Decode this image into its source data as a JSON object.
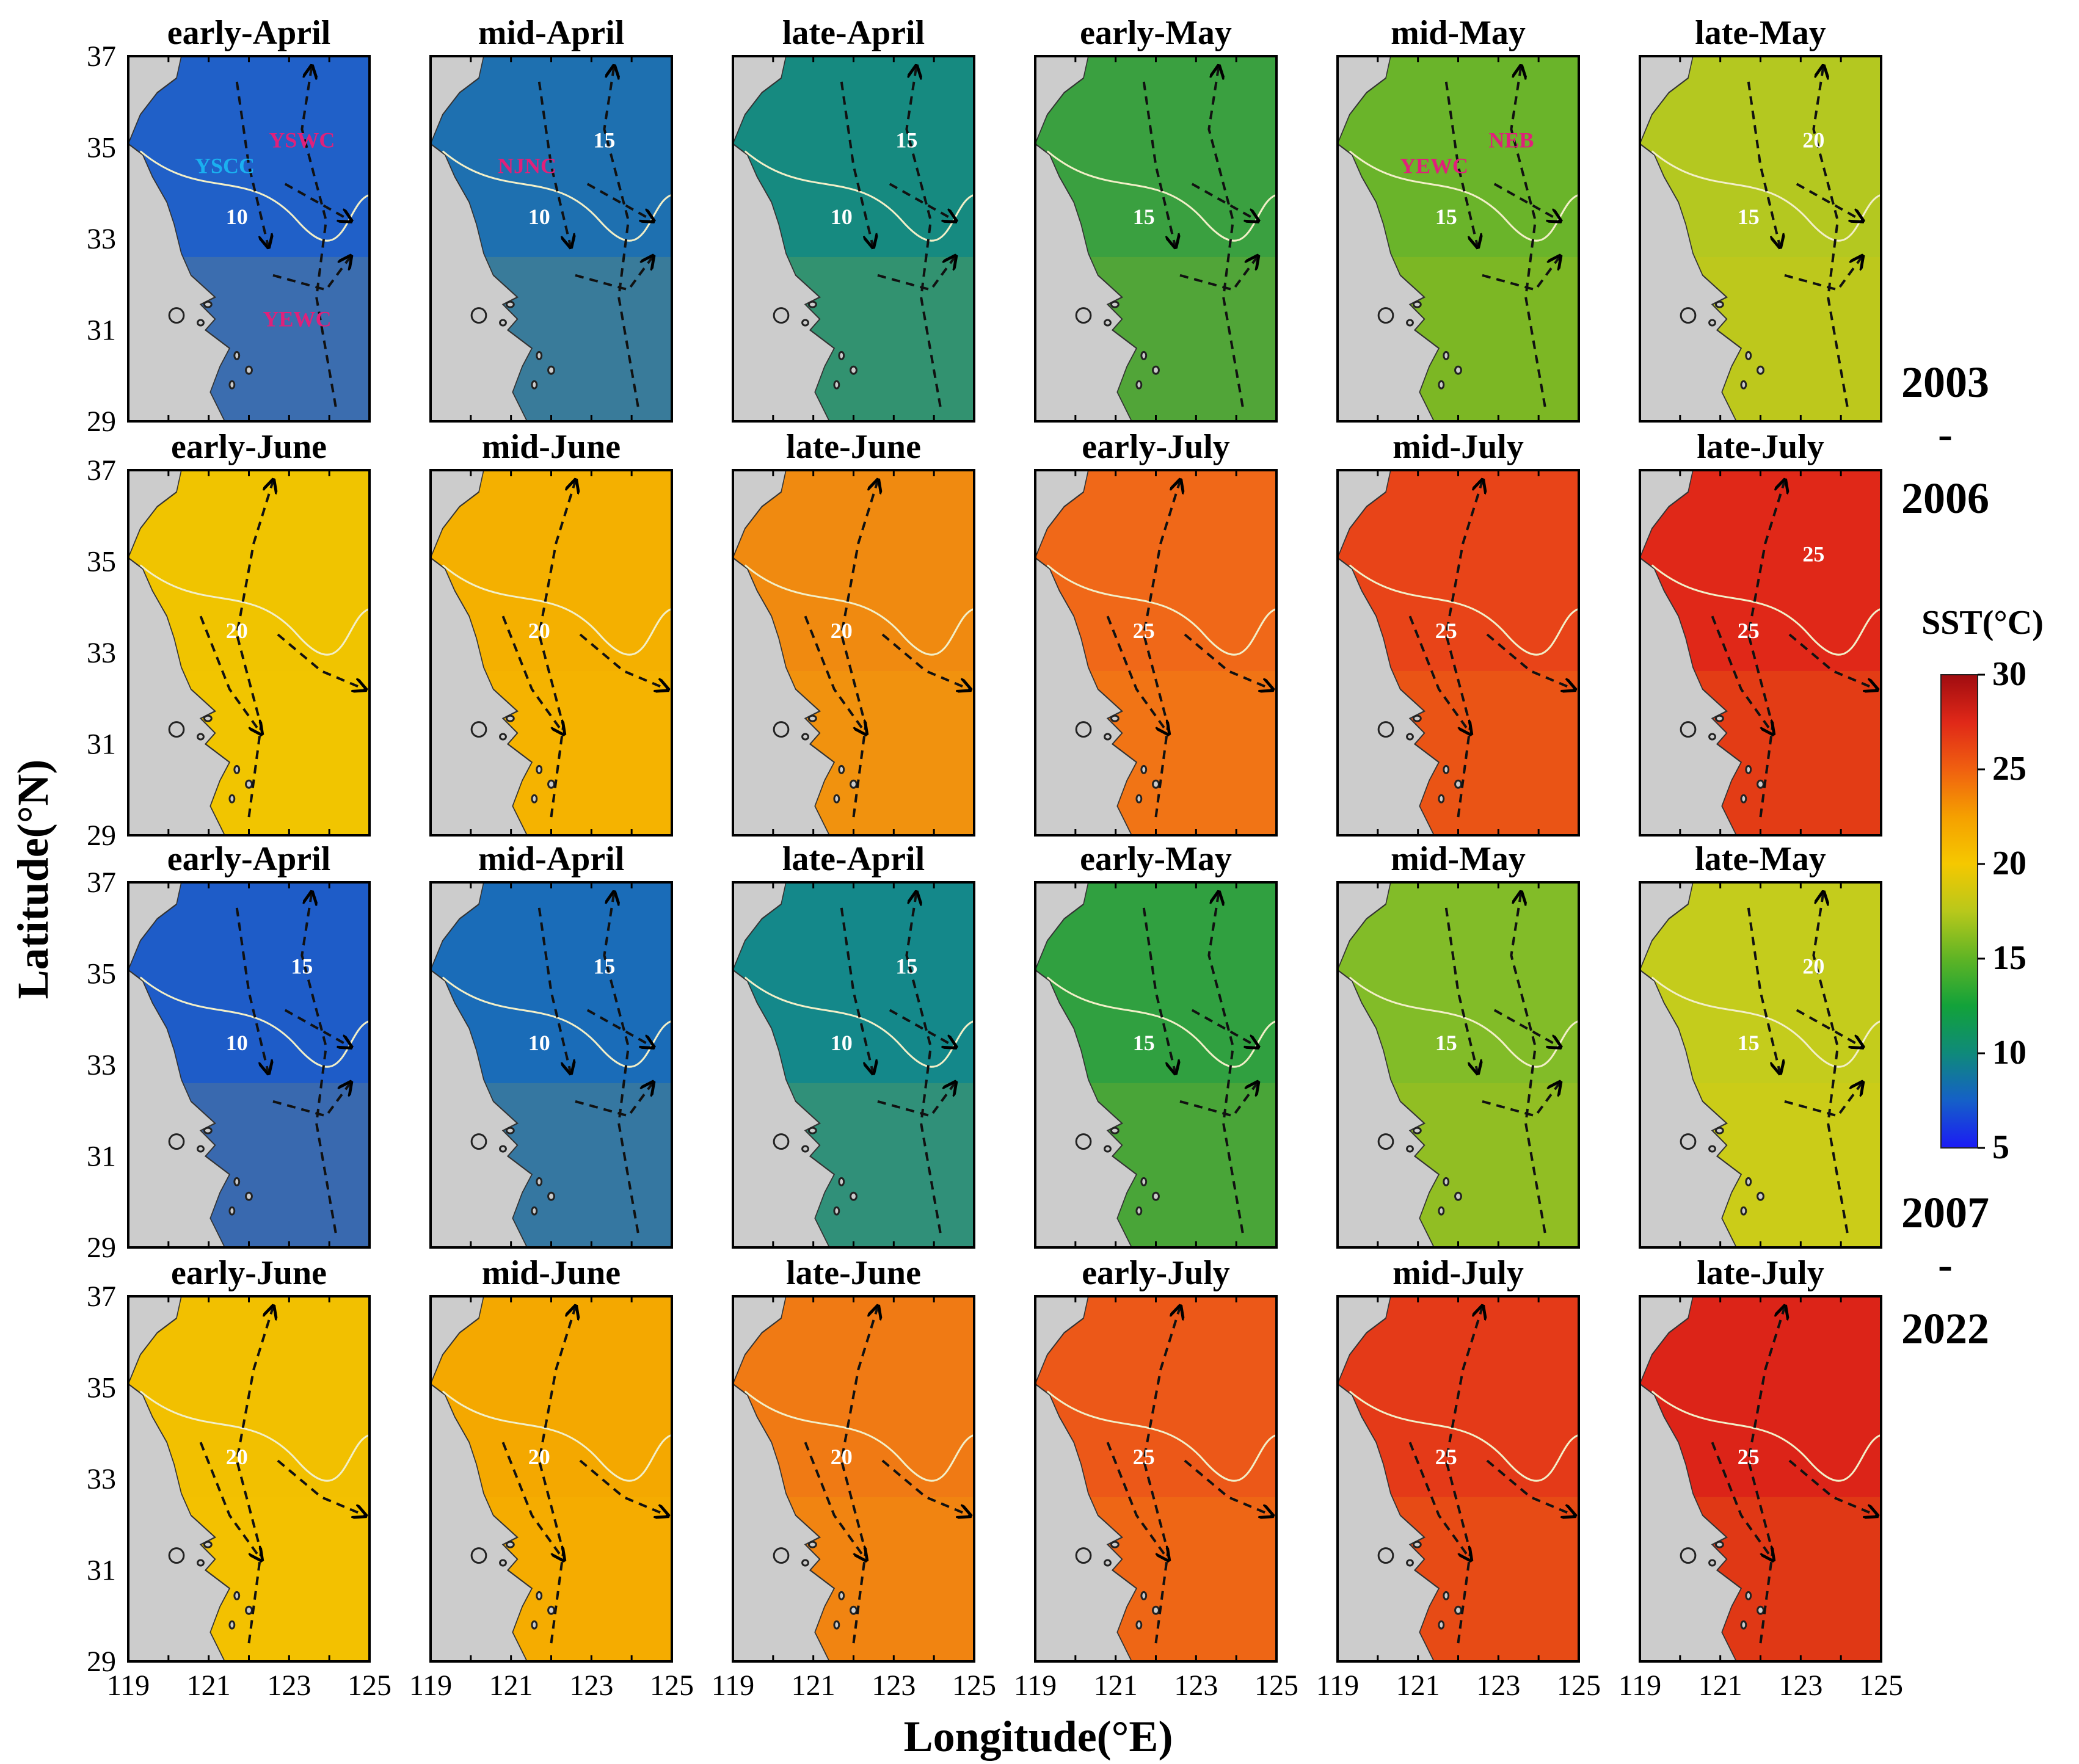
{
  "figure": {
    "xlabel": "Longitude(°E)",
    "ylabel": "Latitude(°N)",
    "lat_ticks": [
      "37",
      "35",
      "33",
      "31",
      "29"
    ],
    "lon_ticks": [
      "119",
      "121",
      "123",
      "125"
    ],
    "periods": [
      {
        "label_top": "2003",
        "dash": "-",
        "label_bottom": "2006"
      },
      {
        "label_top": "2007",
        "dash": "-",
        "label_bottom": "2022"
      }
    ],
    "colorbar": {
      "title": "SST(°C)",
      "ticks": [
        "30",
        "25",
        "20",
        "15",
        "10",
        "5"
      ],
      "range": [
        5,
        30
      ],
      "colors": [
        "#1b1bf5",
        "#1560c8",
        "#0f8a7a",
        "#12a23a",
        "#5fb425",
        "#b8c81b",
        "#f5c800",
        "#f5a000",
        "#f06010",
        "#e02818",
        "#a00c10"
      ]
    }
  },
  "panels": [
    {
      "title": "early-April",
      "color": "#2060c8",
      "labels": [
        {
          "t": "10",
          "c": "white"
        },
        {
          "t": "YSWC",
          "c": "#e0207a"
        },
        {
          "t": "YSCC",
          "c": "#1ab0f0"
        },
        {
          "t": "YEWC",
          "c": "#e0207a"
        }
      ]
    },
    {
      "title": "mid-April",
      "color": "#1e70b0",
      "labels": [
        {
          "t": "10",
          "c": "white"
        },
        {
          "t": "15",
          "c": "white"
        },
        {
          "t": "NJNC",
          "c": "#e0207a"
        }
      ]
    },
    {
      "title": "late-April",
      "color": "#168a80",
      "labels": [
        {
          "t": "10",
          "c": "white"
        },
        {
          "t": "15",
          "c": "white"
        }
      ]
    },
    {
      "title": "early-May",
      "color": "#3aa040",
      "labels": [
        {
          "t": "15",
          "c": "white"
        }
      ]
    },
    {
      "title": "mid-May",
      "color": "#6ab42a",
      "labels": [
        {
          "t": "15",
          "c": "white"
        },
        {
          "t": "NEB",
          "c": "#e0207a"
        },
        {
          "t": "YEWC",
          "c": "#e0207a"
        }
      ]
    },
    {
      "title": "late-May",
      "color": "#b4c820",
      "labels": [
        {
          "t": "15",
          "c": "white"
        },
        {
          "t": "20",
          "c": "white"
        }
      ]
    },
    {
      "title": "early-June",
      "color": "#f0c400",
      "labels": [
        {
          "t": "20",
          "c": "white"
        }
      ]
    },
    {
      "title": "mid-June",
      "color": "#f4b000",
      "labels": [
        {
          "t": "20",
          "c": "white"
        }
      ]
    },
    {
      "title": "late-June",
      "color": "#f08a10",
      "labels": [
        {
          "t": "20",
          "c": "white"
        }
      ]
    },
    {
      "title": "early-July",
      "color": "#f06818",
      "labels": [
        {
          "t": "25",
          "c": "white"
        }
      ]
    },
    {
      "title": "mid-July",
      "color": "#e84418",
      "labels": [
        {
          "t": "25",
          "c": "white"
        }
      ]
    },
    {
      "title": "late-July",
      "color": "#e02818",
      "labels": [
        {
          "t": "25",
          "c": "white"
        },
        {
          "t": "25",
          "c": "white"
        }
      ]
    },
    {
      "title": "early-April",
      "color": "#1e5cc8",
      "labels": [
        {
          "t": "10",
          "c": "white"
        },
        {
          "t": "15",
          "c": "white"
        }
      ]
    },
    {
      "title": "mid-April",
      "color": "#1a6cb8",
      "labels": [
        {
          "t": "10",
          "c": "white"
        },
        {
          "t": "15",
          "c": "white"
        }
      ]
    },
    {
      "title": "late-April",
      "color": "#14888a",
      "labels": [
        {
          "t": "10",
          "c": "white"
        },
        {
          "t": "15",
          "c": "white"
        }
      ]
    },
    {
      "title": "early-May",
      "color": "#30a040",
      "labels": [
        {
          "t": "15",
          "c": "white"
        }
      ]
    },
    {
      "title": "mid-May",
      "color": "#82bc28",
      "labels": [
        {
          "t": "15",
          "c": "white"
        }
      ]
    },
    {
      "title": "late-May",
      "color": "#c4cc1c",
      "labels": [
        {
          "t": "15",
          "c": "white"
        },
        {
          "t": "20",
          "c": "white"
        }
      ]
    },
    {
      "title": "early-June",
      "color": "#f2c000",
      "labels": [
        {
          "t": "20",
          "c": "white"
        }
      ]
    },
    {
      "title": "mid-June",
      "color": "#f4a800",
      "labels": [
        {
          "t": "20",
          "c": "white"
        }
      ]
    },
    {
      "title": "late-June",
      "color": "#f07a14",
      "labels": [
        {
          "t": "20",
          "c": "white"
        }
      ]
    },
    {
      "title": "early-July",
      "color": "#ec5818",
      "labels": [
        {
          "t": "25",
          "c": "white"
        }
      ]
    },
    {
      "title": "mid-July",
      "color": "#e43a18",
      "labels": [
        {
          "t": "25",
          "c": "white"
        }
      ]
    },
    {
      "title": "late-July",
      "color": "#dc2418",
      "labels": [
        {
          "t": "25",
          "c": "white"
        }
      ]
    }
  ]
}
